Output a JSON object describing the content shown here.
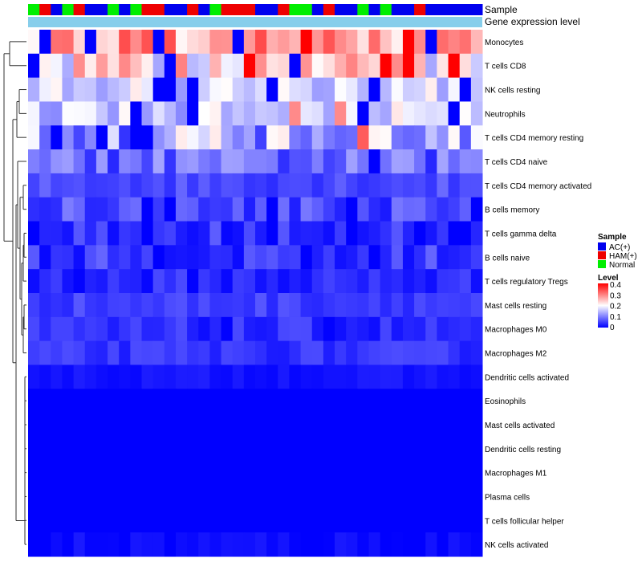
{
  "chart_data": {
    "type": "heatmap",
    "annotation_labels": [
      "Sample",
      "Gene expression level"
    ],
    "sample_groups": [
      "N",
      "H",
      "A",
      "N",
      "H",
      "A",
      "A",
      "N",
      "A",
      "N",
      "H",
      "H",
      "A",
      "A",
      "H",
      "A",
      "N",
      "H",
      "H",
      "H",
      "A",
      "A",
      "H",
      "N",
      "N",
      "A",
      "H",
      "A",
      "A",
      "N",
      "A",
      "N",
      "A",
      "A",
      "H",
      "A",
      "A",
      "A",
      "A",
      "A"
    ],
    "row_labels": [
      "Monocytes",
      "T cells CD8",
      "NK cells resting",
      "Neutrophils",
      "T cells CD4 memory resting",
      "T cells CD4 naive",
      "T cells CD4 memory activated",
      "B cells memory",
      "T cells gamma delta",
      "B cells naive",
      "T cells regulatory  Tregs",
      "Mast cells resting",
      "Macrophages M0",
      "Macrophages M2",
      "Dendritic cells activated",
      "Eosinophils",
      "Mast cells activated",
      "Dendritic cells resting",
      "Macrophages M1",
      "Plasma cells",
      "T cells follicular helper",
      "NK cells activated"
    ],
    "row_base": [
      0.27,
      0.22,
      0.17,
      0.16,
      0.13,
      0.08,
      0.06,
      0.06,
      0.035,
      0.04,
      0.03,
      0.05,
      0.03,
      0.04,
      0.015,
      0.0,
      0.0,
      0.0,
      0.0,
      0.0,
      0.0,
      0.008
    ],
    "row_spread": [
      0.08,
      0.09,
      0.05,
      0.06,
      0.09,
      0.05,
      0.025,
      0.04,
      0.04,
      0.04,
      0.03,
      0.02,
      0.03,
      0.02,
      0.01,
      0.0,
      0.0,
      0.0,
      0.0,
      0.0,
      0.0,
      0.015
    ],
    "value_range": [
      0,
      0.4
    ],
    "legend": {
      "sample_title": "Sample",
      "sample_items": [
        {
          "key": "A",
          "label": "AC(+)",
          "color": "#0000ee"
        },
        {
          "key": "H",
          "label": "HAM(+)",
          "color": "#ee0000"
        },
        {
          "key": "N",
          "label": "Normal",
          "color": "#00ee00"
        }
      ],
      "level_title": "Level",
      "level_ticks": [
        "0.4",
        "0.3",
        "0.2",
        "0.1",
        "0"
      ]
    },
    "colors": {
      "low": "#0000ff",
      "mid": "#ffffff",
      "high": "#ff0000",
      "annotation_bar": "#87ceeb"
    }
  }
}
